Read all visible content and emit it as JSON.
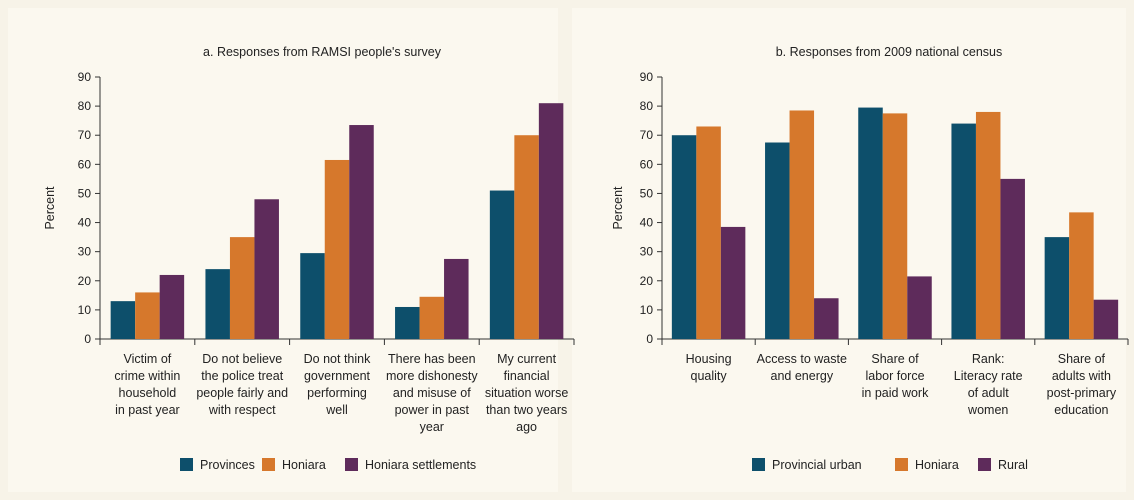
{
  "chart_data": [
    {
      "type": "bar",
      "title": "a. Responses from RAMSI people's survey",
      "ylabel": "Percent",
      "ylim": [
        0,
        90
      ],
      "yticks": [
        0,
        10,
        20,
        30,
        40,
        50,
        60,
        70,
        80,
        90
      ],
      "categories": [
        [
          "Victim of",
          "crime within",
          "household",
          "in past year"
        ],
        [
          "Do not believe",
          "the police treat",
          "people fairly and",
          "with respect"
        ],
        [
          "Do not think",
          "government",
          "performing",
          "well"
        ],
        [
          "There has been",
          "more dishonesty",
          "and misuse of",
          "power in past",
          "year"
        ],
        [
          "My current",
          "financial",
          "situation worse",
          "than two years",
          "ago"
        ]
      ],
      "series": [
        {
          "name": "Provinces",
          "color": "#0d4f6b",
          "values": [
            13,
            24,
            29.5,
            11,
            51
          ]
        },
        {
          "name": "Honiara",
          "color": "#d6782c",
          "values": [
            16,
            35,
            61.5,
            14.5,
            70
          ]
        },
        {
          "name": "Honiara settlements",
          "color": "#5e2b5b",
          "values": [
            22,
            48,
            73.5,
            27.5,
            81
          ]
        }
      ],
      "legend_position": "bottom"
    },
    {
      "type": "bar",
      "title": "b. Responses from 2009 national census",
      "ylabel": "Percent",
      "ylim": [
        0,
        90
      ],
      "yticks": [
        0,
        10,
        20,
        30,
        40,
        50,
        60,
        70,
        80,
        90
      ],
      "categories": [
        [
          "Housing",
          "quality"
        ],
        [
          "Access to waste",
          "and energy"
        ],
        [
          "Share of",
          "labor force",
          "in paid work"
        ],
        [
          "Rank:",
          "Literacy rate",
          "of adult",
          "women"
        ],
        [
          "Share of",
          "adults with",
          "post-primary",
          "education"
        ]
      ],
      "series": [
        {
          "name": "Provincial urban",
          "color": "#0d4f6b",
          "values": [
            70,
            67.5,
            79.5,
            74,
            35
          ]
        },
        {
          "name": "Honiara",
          "color": "#d6782c",
          "values": [
            73,
            78.5,
            77.5,
            78,
            43.5
          ]
        },
        {
          "name": "Rural",
          "color": "#5e2b5b",
          "values": [
            38.5,
            14,
            21.5,
            55,
            13.5
          ]
        }
      ],
      "legend_position": "bottom"
    }
  ]
}
